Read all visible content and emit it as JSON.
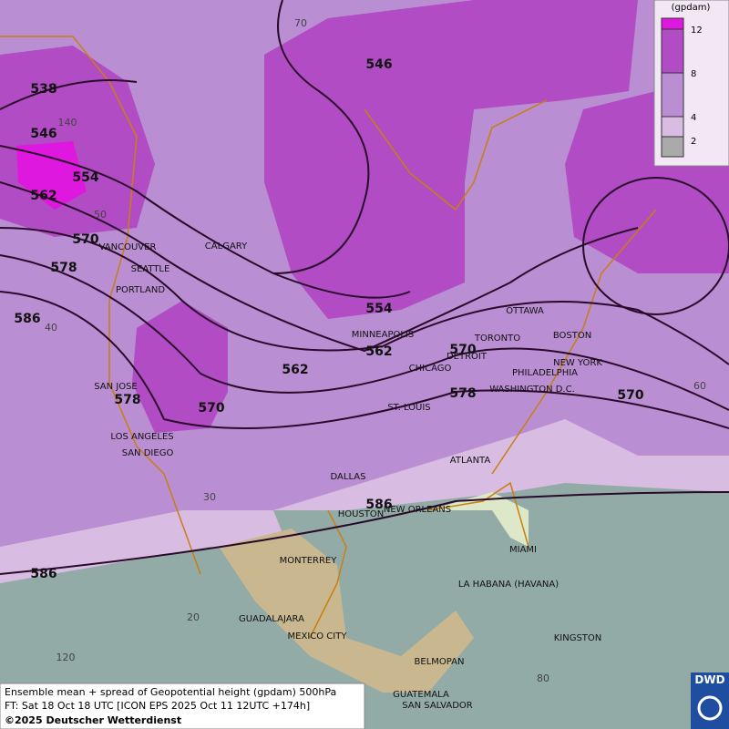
{
  "legend": {
    "title": "(gpdam)",
    "ticks": [
      "12",
      "8",
      "4",
      "2"
    ]
  },
  "contour_labels": [
    "538",
    "546",
    "554",
    "562",
    "570",
    "578",
    "586",
    "546",
    "554",
    "562",
    "562",
    "570",
    "578",
    "570",
    "578",
    "586",
    "586",
    "570"
  ],
  "cities": [
    "VANCOUVER",
    "CALGARY",
    "SEATTLE",
    "PORTLAND",
    "MINNEAPOLIS",
    "OTTAWA",
    "TORONTO",
    "BOSTON",
    "DETROIT",
    "CHICAGO",
    "NEW YORK",
    "PHILADELPHIA",
    "WASHINGTON D.C.",
    "SAN JOSE",
    "ST. LOUIS",
    "LOS ANGELES",
    "SAN DIEGO",
    "ATLANTA",
    "DALLAS",
    "HOUSTON",
    "NEW ORLEANS",
    "MIAMI",
    "MONTERREY",
    "LA HABANA (HAVANA)",
    "GUADALAJARA",
    "MEXICO CITY",
    "KINGSTON",
    "BELMOPAN",
    "GUATEMALA",
    "SAN SALVADOR"
  ],
  "grid_labels": [
    "70",
    "140",
    "50",
    "40",
    "30",
    "20",
    "120",
    "60",
    "80"
  ],
  "footer": [
    "Ensemble mean + spread of Geopotential height (gpdam) 500hPa",
    "FT: Sat 18 Oct 18 UTC [ICON EPS 2025 Oct 11 12UTC +174h]",
    "©2025 Deutscher Wetterdienst"
  ],
  "logo": "DWD"
}
